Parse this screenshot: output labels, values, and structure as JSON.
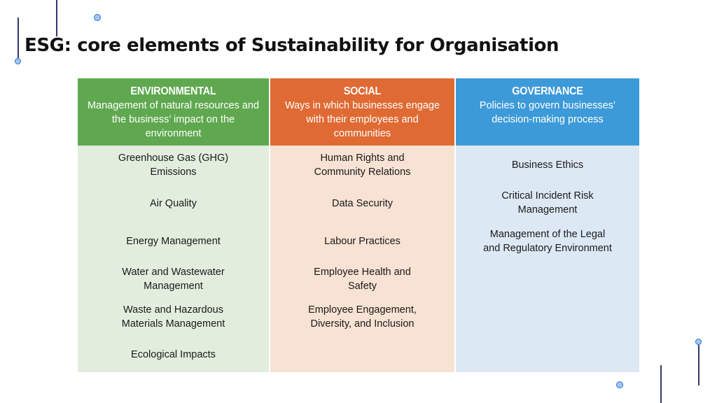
{
  "title": "ESG: core elements of Sustainability for Organisation",
  "columns": {
    "environmental": {
      "heading": "ENVIRONMENTAL",
      "description": "Management of natural resources and the business’ impact on the environment",
      "items": [
        "Greenhouse Gas (GHG)\nEmissions",
        "Air Quality",
        "Energy Management",
        "Water and Wastewater\nManagement",
        "Waste and Hazardous\nMaterials Management",
        "Ecological Impacts"
      ]
    },
    "social": {
      "heading": "SOCIAL",
      "description": "Ways in which businesses engage with their employees and communities",
      "items": [
        "Human Rights and\nCommunity Relations",
        "Data Security",
        "Labour Practices",
        "Employee Health and\nSafety",
        "Employee Engagement,\nDiversity, and Inclusion"
      ]
    },
    "governance": {
      "heading": "GOVERNANCE",
      "description": "Policies to govern businesses’ decision-making process",
      "items": [
        "Business Ethics",
        "Critical Incident Risk\nManagement",
        "Management of the Legal\nand Regulatory Environment"
      ]
    }
  },
  "colors": {
    "environmental_header": "#5fa84f",
    "social_header": "#e06a33",
    "governance_header": "#3d9ad9",
    "environmental_body": "#e2edde",
    "social_body": "#f7e2d3",
    "governance_body": "#dde8f5"
  }
}
